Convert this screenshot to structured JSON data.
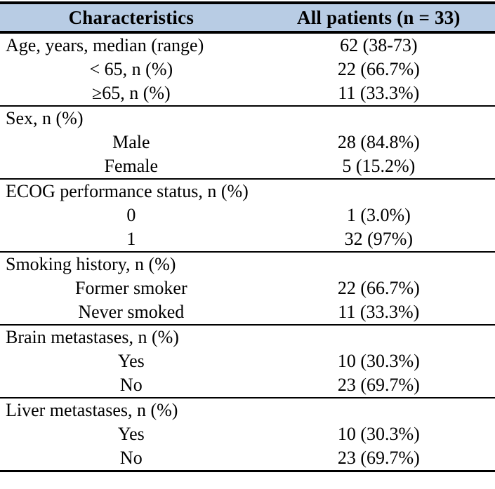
{
  "table": {
    "columns": [
      "Characteristics",
      "All patients (n = 33)"
    ],
    "header_bg": "#b8cce4",
    "border_color": "#000000",
    "rows": [
      {
        "type": "section",
        "label": "Age, years, median (range)",
        "value": "62 (38-73)",
        "section_end": false
      },
      {
        "type": "sub",
        "label": "< 65, n (%)",
        "value": "22 (66.7%)",
        "section_end": false
      },
      {
        "type": "sub",
        "label": "≥65, n (%)",
        "value": "11 (33.3%)",
        "section_end": true
      },
      {
        "type": "section",
        "label": "Sex, n (%)",
        "value": "",
        "section_end": false
      },
      {
        "type": "sub",
        "label": "Male",
        "value": "28 (84.8%)",
        "section_end": false
      },
      {
        "type": "sub",
        "label": "Female",
        "value": "5 (15.2%)",
        "section_end": true
      },
      {
        "type": "section",
        "label": "ECOG performance status, n (%)",
        "value": "",
        "section_end": false
      },
      {
        "type": "sub",
        "label": "0",
        "value": "1 (3.0%)",
        "section_end": false
      },
      {
        "type": "sub",
        "label": "1",
        "value": "32 (97%)",
        "section_end": true
      },
      {
        "type": "section",
        "label": "Smoking history, n (%)",
        "value": "",
        "section_end": false
      },
      {
        "type": "sub",
        "label": "Former smoker",
        "value": "22 (66.7%)",
        "section_end": false
      },
      {
        "type": "sub",
        "label": "Never smoked",
        "value": "11 (33.3%)",
        "section_end": true
      },
      {
        "type": "section",
        "label": "Brain metastases, n (%)",
        "value": "",
        "section_end": false
      },
      {
        "type": "sub",
        "label": "Yes",
        "value": "10 (30.3%)",
        "section_end": false
      },
      {
        "type": "sub",
        "label": "No",
        "value": "23 (69.7%)",
        "section_end": true
      },
      {
        "type": "section",
        "label": "Liver metastases, n (%)",
        "value": "",
        "section_end": false
      },
      {
        "type": "sub",
        "label": "Yes",
        "value": "10 (30.3%)",
        "section_end": false
      },
      {
        "type": "sub",
        "label": "No",
        "value": "23 (69.7%)",
        "section_end": false
      }
    ]
  }
}
